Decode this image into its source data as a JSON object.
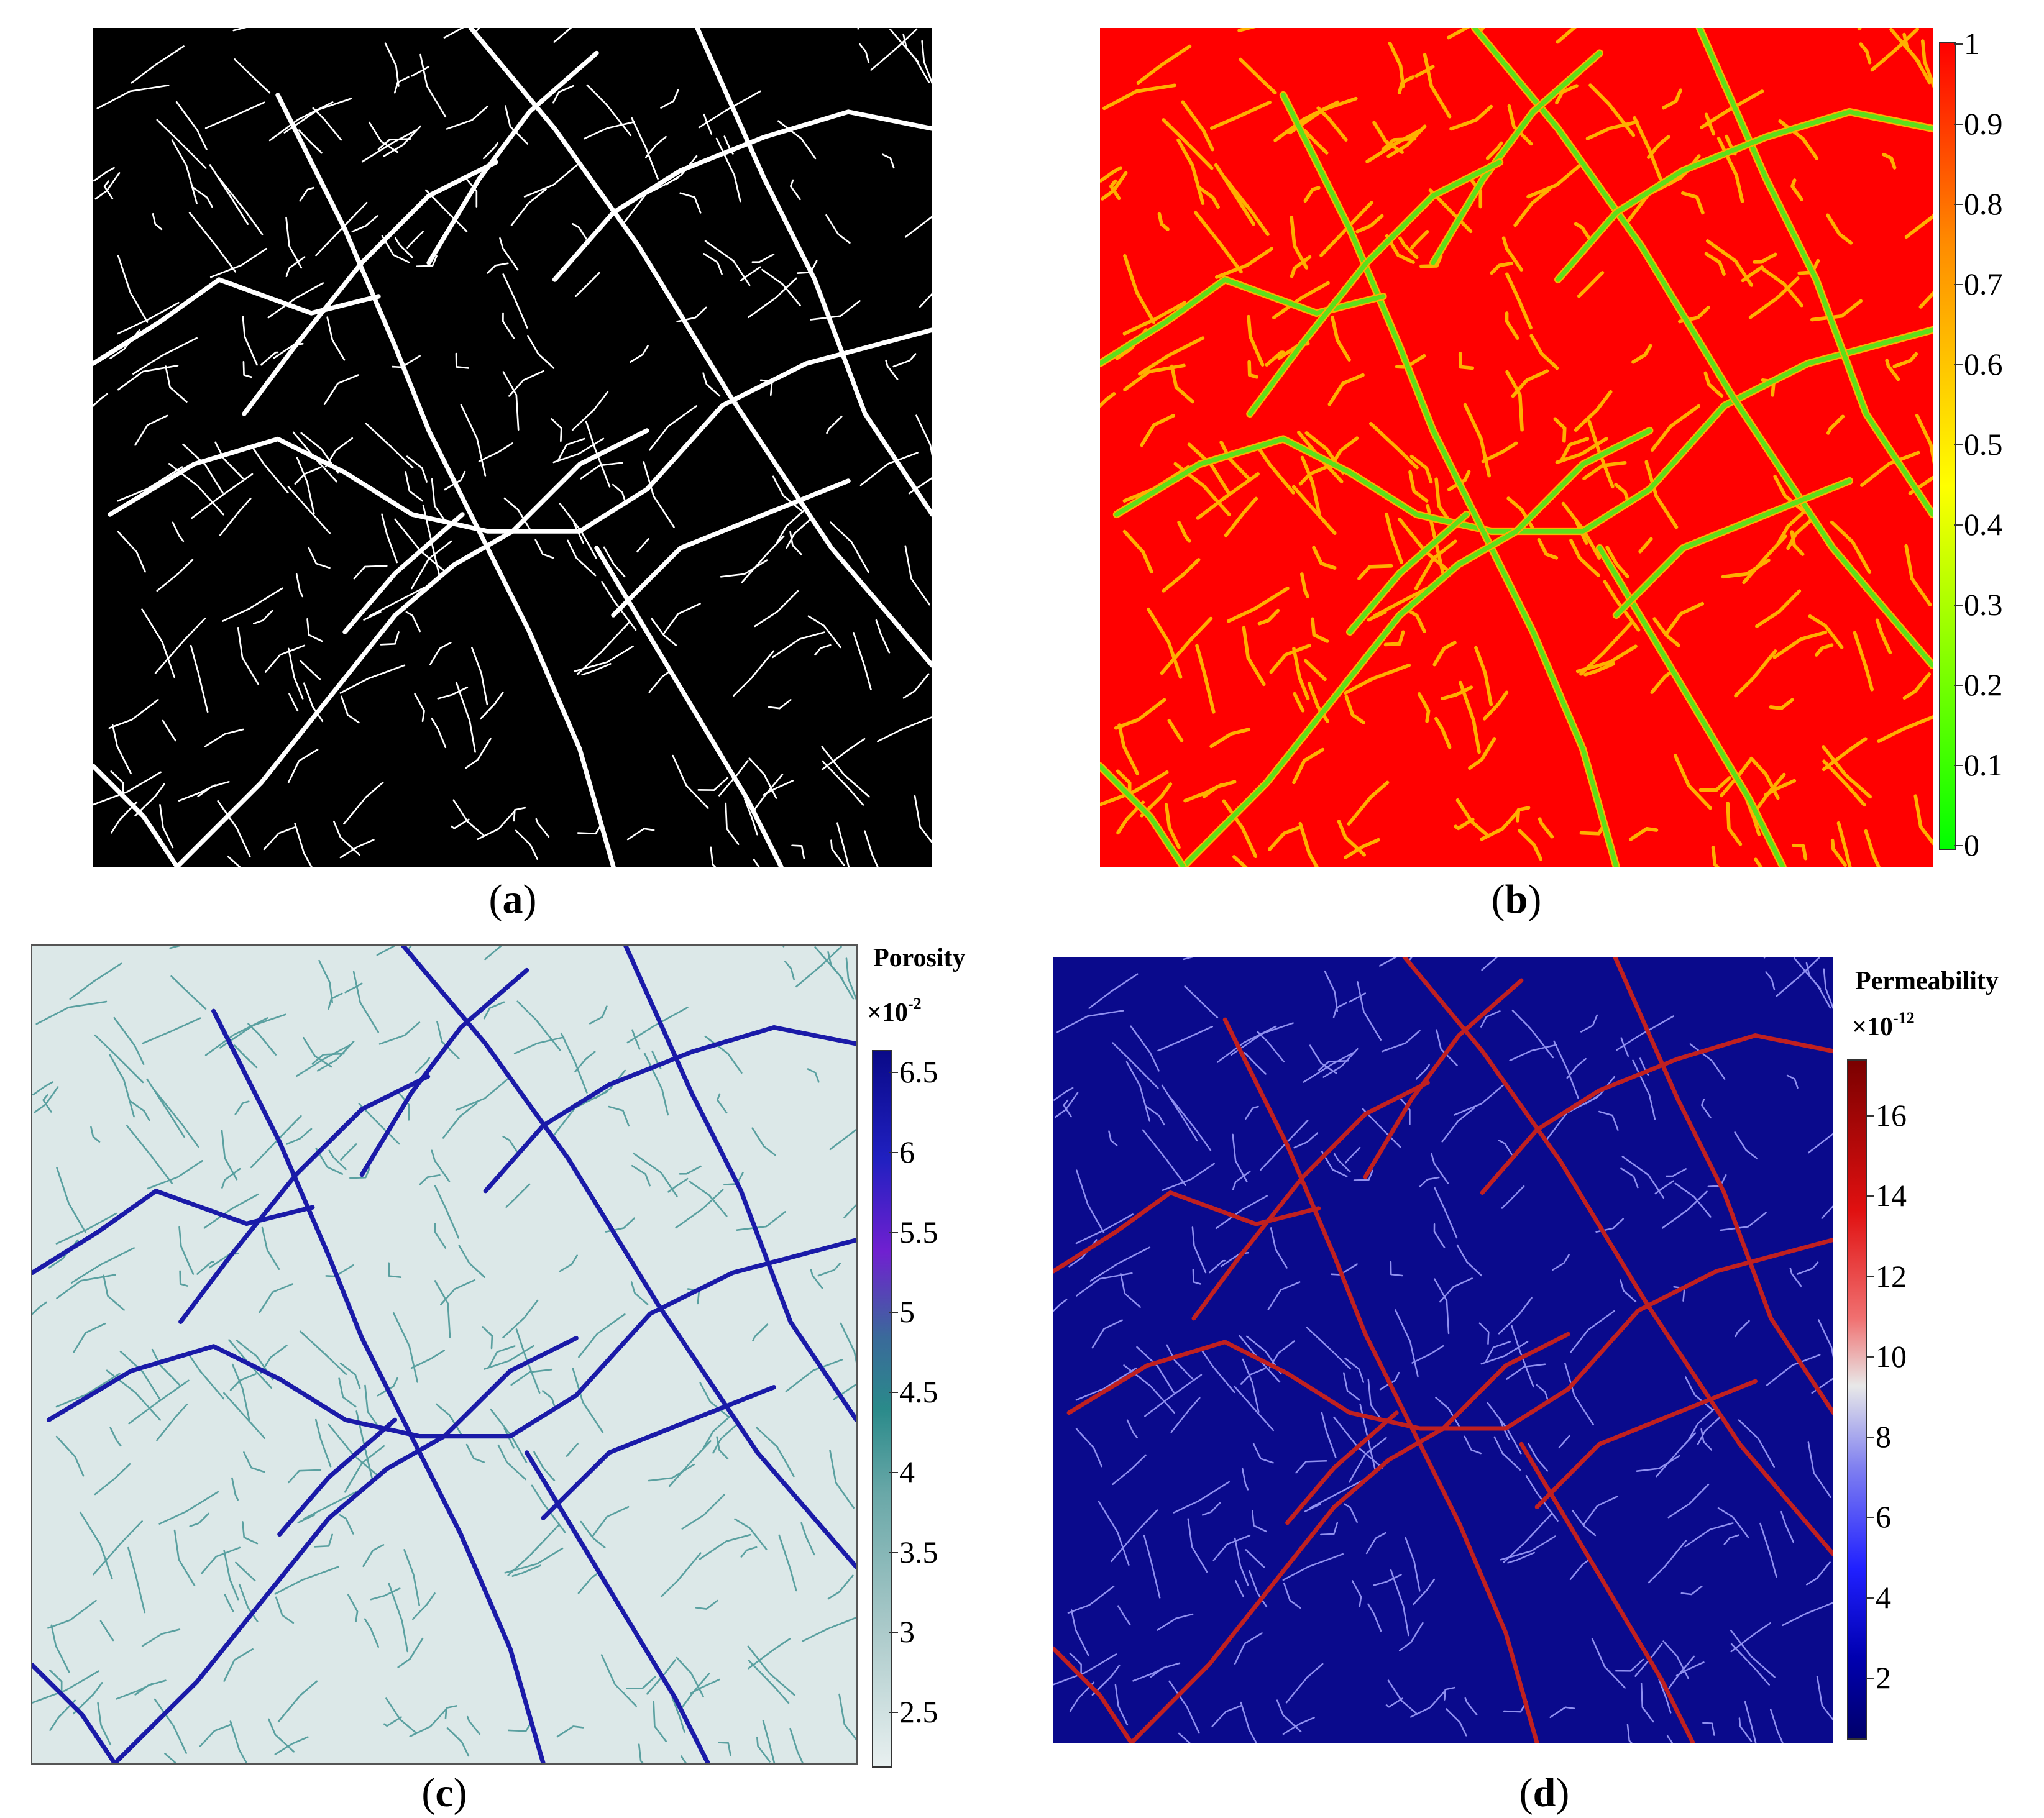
{
  "panels": [
    {
      "id": "a",
      "caption": "a",
      "background": "#000000",
      "fracture_color": "#ffffff"
    },
    {
      "id": "b",
      "caption": "b",
      "background": "#ff0000",
      "fracture_color": "#5ddf1a",
      "halo_color": "#ffb000",
      "colorbar": {
        "ticks": [
          "1",
          "0.9",
          "0.8",
          "0.7",
          "0.6",
          "0.5",
          "0.4",
          "0.3",
          "0.2",
          "0.1",
          "0"
        ],
        "colors": [
          "#ff0000",
          "#ff8c00",
          "#ffff00",
          "#00ff00"
        ]
      }
    },
    {
      "id": "c",
      "caption": "c",
      "background": "#dce8e8",
      "fracture_color": "#1a1aa8",
      "minor_color": "#5aa0a0",
      "colorbar": {
        "title": "Porosity",
        "multiplier": "×10",
        "exponent": "-2",
        "ticks": [
          "6.5",
          "6",
          "5.5",
          "5",
          "4.5",
          "4",
          "3.5",
          "3",
          "2.5"
        ],
        "colors": [
          "#0a0a88",
          "#2020c0",
          "#7020d0",
          "#3a6a9a",
          "#2a8a8a",
          "#6aa8a8",
          "#a8c8c8",
          "#e4eeee"
        ]
      }
    },
    {
      "id": "d",
      "caption": "d",
      "background": "#0a0a8c",
      "fracture_color": "#c02020",
      "minor_color": "#9090f0",
      "colorbar": {
        "title": "Permeability",
        "multiplier": "×10",
        "exponent": "-12",
        "ticks": [
          "16",
          "14",
          "12",
          "10",
          "8",
          "6",
          "4",
          "2"
        ],
        "colors": [
          "#7a0000",
          "#e01010",
          "#f07070",
          "#e8e8e8",
          "#8080f0",
          "#2020ff",
          "#0000b0",
          "#00006a"
        ]
      }
    }
  ]
}
